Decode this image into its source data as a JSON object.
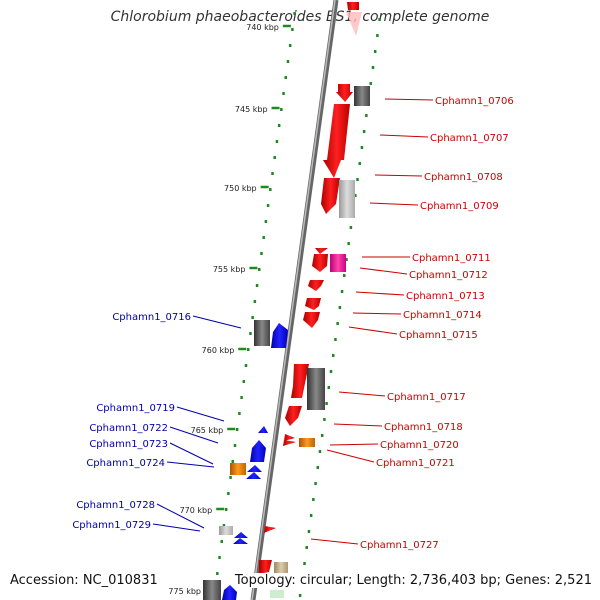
{
  "title": "Chlorobium phaeobacteroides BS1, complete genome",
  "footer": {
    "accession": "Accession: NC_010831",
    "summary": "Topology: circular; Length: 2,736,403 bp; Genes: 2,521"
  },
  "colors": {
    "forward_label": "#cc0000",
    "reverse_label": "#0000aa",
    "tick": "#228822",
    "backbone": "#777777"
  },
  "scale_labels": [
    "740 kbp",
    "745 kbp",
    "750 kbp",
    "755 kbp",
    "760 kbp",
    "765 kbp",
    "770 kbp",
    "775 kbp"
  ],
  "forward_genes": [
    "Cphamn1_0706",
    "Cphamn1_0707",
    "Cphamn1_0708",
    "Cphamn1_0709",
    "Cphamn1_0711",
    "Cphamn1_0712",
    "Cphamn1_0713",
    "Cphamn1_0714",
    "Cphamn1_0715",
    "Cphamn1_0717",
    "Cphamn1_0718",
    "Cphamn1_0720",
    "Cphamn1_0721",
    "Cphamn1_0727"
  ],
  "reverse_genes": [
    "Cphamn1_0716",
    "Cphamn1_0719",
    "Cphamn1_0722",
    "Cphamn1_0723",
    "Cphamn1_0724",
    "Cphamn1_0728",
    "Cphamn1_0729"
  ]
}
